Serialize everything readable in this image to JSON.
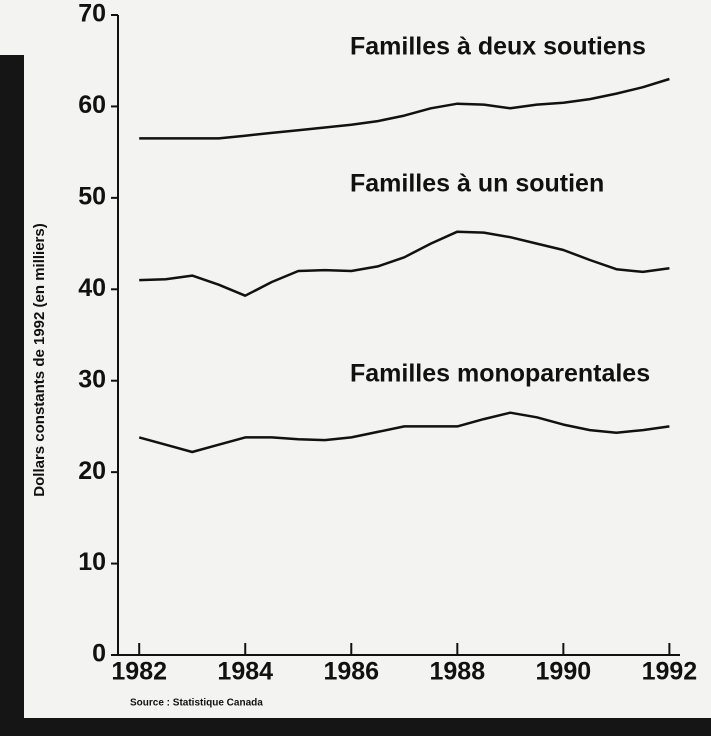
{
  "chart_data": {
    "type": "line",
    "y_label": "Dollars constants de 1992 (en milliers)",
    "source": "Source : Statistique Canada",
    "x": [
      1982,
      1982.5,
      1983,
      1983.5,
      1984,
      1984.5,
      1985,
      1985.5,
      1986,
      1986.5,
      1987,
      1987.5,
      1988,
      1988.5,
      1989,
      1989.5,
      1990,
      1990.5,
      1991,
      1991.5,
      1992
    ],
    "series": [
      {
        "name": "Familles à deux soutiens",
        "color": "#111111",
        "values": [
          56.5,
          56.5,
          56.5,
          56.5,
          56.8,
          57.1,
          57.4,
          57.7,
          58.0,
          58.4,
          59.0,
          59.8,
          60.3,
          60.2,
          59.8,
          60.2,
          60.4,
          60.8,
          61.4,
          62.1,
          63.0
        ]
      },
      {
        "name": "Familles à un soutien",
        "color": "#111111",
        "values": [
          41.0,
          41.1,
          41.5,
          40.5,
          39.3,
          40.8,
          42.0,
          42.1,
          42.0,
          42.5,
          43.5,
          45.0,
          46.3,
          46.2,
          45.7,
          45.0,
          44.3,
          43.2,
          42.2,
          41.9,
          42.3
        ]
      },
      {
        "name": "Familles monoparentales",
        "color": "#111111",
        "values": [
          23.8,
          23.0,
          22.2,
          23.0,
          23.8,
          23.8,
          23.6,
          23.5,
          23.8,
          24.4,
          25.0,
          25.0,
          25.0,
          25.8,
          26.5,
          26.0,
          25.2,
          24.6,
          24.3,
          24.6,
          25.0
        ]
      }
    ],
    "xlim": [
      1981.6,
      1992.2
    ],
    "xticks": [
      1982,
      1984,
      1986,
      1988,
      1990,
      1992
    ],
    "ylim": [
      0,
      70
    ],
    "yticks": [
      0,
      10,
      20,
      30,
      40,
      50,
      60,
      70
    ]
  }
}
